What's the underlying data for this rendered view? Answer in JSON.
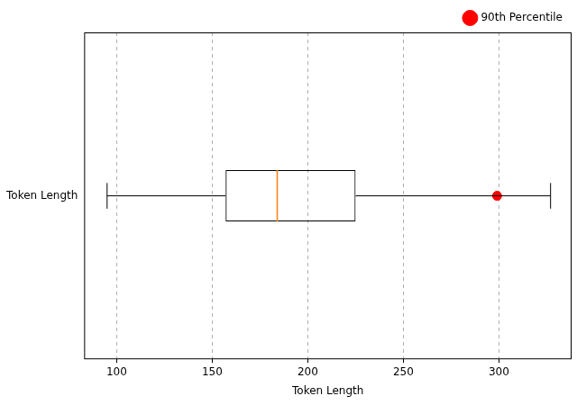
{
  "chart_data": {
    "type": "box",
    "orientation": "horizontal",
    "categories": [
      "Token Length"
    ],
    "x_label": "Token Length",
    "boxes": [
      {
        "min": 95,
        "q1": 157,
        "median": 184,
        "q3": 225,
        "max": 327
      }
    ],
    "series": [
      {
        "name": "90th Percentile",
        "color": "#ff0000",
        "values": [
          299
        ],
        "marker": "circle"
      }
    ],
    "xlim": [
      83,
      338
    ],
    "xticks": [
      100,
      150,
      200,
      250,
      300
    ],
    "grid": true,
    "legend": "upper right"
  }
}
